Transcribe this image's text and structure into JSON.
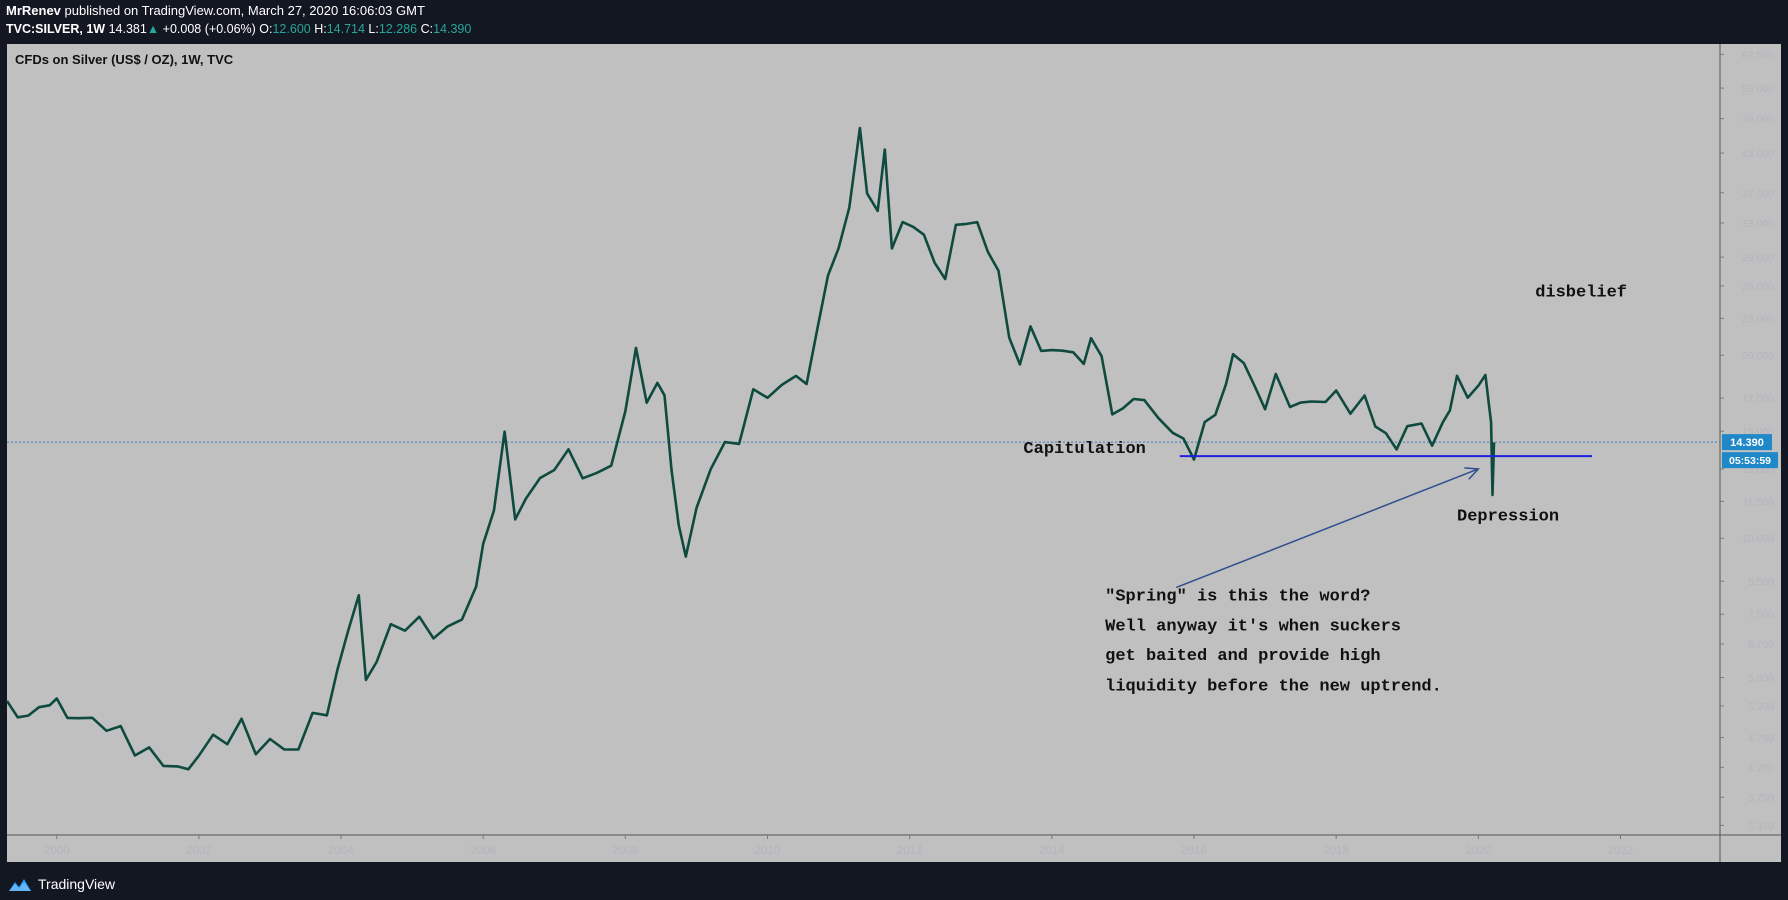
{
  "header": {
    "author": "MrRenev",
    "published": "published on TradingView.com, March 27, 2020 16:06:03 GMT",
    "symbol": "TVC:SILVER, 1W",
    "last": "14.381",
    "change": "+0.008 (+0.06%)",
    "open_label": "O:",
    "open": "12.600",
    "high_label": "H:",
    "high": "14.714",
    "low_label": "L:",
    "low": "12.286",
    "close_label": "C:",
    "close": "14.390"
  },
  "chart_title": "CFDs on Silver (US$ / OZ), 1W, TVC",
  "footer": {
    "brand": "TradingView"
  },
  "colors": {
    "line": "#0f4a3e",
    "support": "#1f1fe0",
    "arrow": "#2e4f8e",
    "price_tag": "#1e88c8"
  },
  "chart_data": {
    "type": "line",
    "title": "CFDs on Silver (US$ / OZ), 1W, TVC",
    "xlabel": "",
    "ylabel": "",
    "x_ticks": [
      "2000",
      "2002",
      "2004",
      "2006",
      "2008",
      "2010",
      "2012",
      "2014",
      "2016",
      "2018",
      "2020",
      "2022"
    ],
    "y_ticks": [
      "62.500",
      "55.000",
      "49.000",
      "43.000",
      "37.000",
      "33.000",
      "29.000",
      "26.000",
      "23.000",
      "20.000",
      "17.000",
      "15.000",
      "13.000",
      "11.500",
      "10.000",
      "8.500",
      "7.500",
      "6.700",
      "5.900",
      "5.300",
      "4.700",
      "4.200",
      "3.750",
      "3.370"
    ],
    "scale": "log",
    "xlim": [
      1999.3,
      2023.4
    ],
    "ylim": [
      3.25,
      65
    ],
    "last_price_label": "14.390",
    "countdown_label": "05:53:59",
    "last_price": 14.39,
    "series": [
      {
        "points": [
          [
            1999.3,
            5.4
          ],
          [
            1999.45,
            5.0
          ],
          [
            1999.6,
            5.25
          ],
          [
            1999.75,
            5.1
          ],
          [
            1999.9,
            5.5
          ],
          [
            2000.0,
            5.3
          ],
          [
            2000.15,
            5.15
          ],
          [
            2000.3,
            5.05
          ],
          [
            2000.5,
            5.0
          ],
          [
            2000.7,
            4.95
          ],
          [
            2000.9,
            4.75
          ],
          [
            2001.1,
            4.55
          ],
          [
            2001.3,
            4.4
          ],
          [
            2001.5,
            4.3
          ],
          [
            2001.7,
            4.2
          ],
          [
            2001.85,
            4.12
          ],
          [
            2002.0,
            4.5
          ],
          [
            2002.2,
            4.6
          ],
          [
            2002.4,
            4.75
          ],
          [
            2002.6,
            4.9
          ],
          [
            2002.8,
            4.5
          ],
          [
            2003.0,
            4.65
          ],
          [
            2003.2,
            4.45
          ],
          [
            2003.4,
            4.6
          ],
          [
            2003.6,
            5.0
          ],
          [
            2003.8,
            5.3
          ],
          [
            2003.95,
            5.9
          ],
          [
            2004.1,
            7.2
          ],
          [
            2004.25,
            8.0
          ],
          [
            2004.35,
            5.8
          ],
          [
            2004.5,
            6.4
          ],
          [
            2004.7,
            7.0
          ],
          [
            2004.9,
            7.3
          ],
          [
            2005.1,
            7.2
          ],
          [
            2005.3,
            7.0
          ],
          [
            2005.5,
            7.1
          ],
          [
            2005.7,
            7.3
          ],
          [
            2005.9,
            8.5
          ],
          [
            2006.0,
            9.5
          ],
          [
            2006.15,
            11.5
          ],
          [
            2006.3,
            14.5
          ],
          [
            2006.45,
            11.0
          ],
          [
            2006.6,
            11.5
          ],
          [
            2006.8,
            12.5
          ],
          [
            2007.0,
            13.2
          ],
          [
            2007.2,
            13.6
          ],
          [
            2007.4,
            13.0
          ],
          [
            2007.6,
            12.4
          ],
          [
            2007.8,
            13.5
          ],
          [
            2008.0,
            16.0
          ],
          [
            2008.15,
            20.5
          ],
          [
            2008.3,
            17.0
          ],
          [
            2008.45,
            17.5
          ],
          [
            2008.55,
            17.8
          ],
          [
            2008.65,
            12.5
          ],
          [
            2008.75,
            10.8
          ],
          [
            2008.85,
            9.2
          ],
          [
            2009.0,
            11.2
          ],
          [
            2009.2,
            13.2
          ],
          [
            2009.4,
            14.0
          ],
          [
            2009.6,
            14.8
          ],
          [
            2009.8,
            17.0
          ],
          [
            2010.0,
            17.5
          ],
          [
            2010.2,
            17.6
          ],
          [
            2010.4,
            18.5
          ],
          [
            2010.55,
            18.2
          ],
          [
            2010.7,
            21.5
          ],
          [
            2010.85,
            28.0
          ],
          [
            2011.0,
            29.0
          ],
          [
            2011.15,
            36.0
          ],
          [
            2011.3,
            46.5
          ],
          [
            2011.4,
            37.0
          ],
          [
            2011.55,
            35.0
          ],
          [
            2011.65,
            42.5
          ],
          [
            2011.75,
            31.0
          ],
          [
            2011.9,
            32.0
          ],
          [
            2012.05,
            33.5
          ],
          [
            2012.2,
            31.0
          ],
          [
            2012.35,
            28.5
          ],
          [
            2012.5,
            27.0
          ],
          [
            2012.65,
            32.0
          ],
          [
            2012.8,
            34.0
          ],
          [
            2012.95,
            32.0
          ],
          [
            2013.1,
            30.5
          ],
          [
            2013.25,
            27.0
          ],
          [
            2013.4,
            21.5
          ],
          [
            2013.55,
            19.5
          ],
          [
            2013.7,
            21.8
          ],
          [
            2013.85,
            21.0
          ],
          [
            2014.0,
            19.7
          ],
          [
            2014.15,
            21.0
          ],
          [
            2014.3,
            19.8
          ],
          [
            2014.45,
            19.5
          ],
          [
            2014.55,
            21.5
          ],
          [
            2014.7,
            19.5
          ],
          [
            2014.85,
            16.5
          ],
          [
            2015.0,
            15.8
          ],
          [
            2015.15,
            17.5
          ],
          [
            2015.3,
            16.5
          ],
          [
            2015.5,
            15.9
          ],
          [
            2015.7,
            15.0
          ],
          [
            2015.85,
            14.3
          ],
          [
            2016.0,
            13.9
          ],
          [
            2016.15,
            15.0
          ],
          [
            2016.3,
            16.5
          ],
          [
            2016.45,
            17.5
          ],
          [
            2016.55,
            20.3
          ],
          [
            2016.7,
            19.5
          ],
          [
            2016.85,
            17.5
          ],
          [
            2017.0,
            16.8
          ],
          [
            2017.15,
            18.0
          ],
          [
            2017.35,
            17.0
          ],
          [
            2017.5,
            16.3
          ],
          [
            2017.65,
            17.0
          ],
          [
            2017.85,
            16.8
          ],
          [
            2018.0,
            17.2
          ],
          [
            2018.2,
            16.5
          ],
          [
            2018.4,
            16.6
          ],
          [
            2018.55,
            15.8
          ],
          [
            2018.7,
            14.5
          ],
          [
            2018.85,
            14.2
          ],
          [
            2019.0,
            15.3
          ],
          [
            2019.2,
            15.2
          ],
          [
            2019.35,
            14.6
          ],
          [
            2019.5,
            15.0
          ],
          [
            2019.6,
            16.8
          ],
          [
            2019.7,
            18.0
          ],
          [
            2019.85,
            17.3
          ],
          [
            2020.0,
            17.8
          ],
          [
            2020.1,
            18.3
          ],
          [
            2020.15,
            17.0
          ],
          [
            2020.18,
            15.0
          ],
          [
            2020.2,
            12.2
          ],
          [
            2020.22,
            14.38
          ]
        ]
      }
    ],
    "support_line": {
      "price": 13.65,
      "x_start": 2015.8,
      "x_end": 2021.6
    },
    "arrow": {
      "from": [
        2015.75,
        8.3
      ],
      "to": [
        2020.0,
        13.0
      ]
    },
    "annotations": [
      {
        "text": "disbelief",
        "x": 2020.8,
        "y": 25.0
      },
      {
        "text": "Capitulation",
        "x": 2013.6,
        "y": 13.8
      },
      {
        "text": "Depression",
        "x": 2019.7,
        "y": 10.7
      },
      {
        "text": "\"Spring\" is this the word?",
        "x": 2014.75,
        "y": 7.9
      },
      {
        "text": "Well anyway it's when suckers",
        "x": 2014.75,
        "y": 7.05
      },
      {
        "text": "get baited and provide high",
        "x": 2014.75,
        "y": 6.3
      },
      {
        "text": "liquidity before the new uptrend.",
        "x": 2014.75,
        "y": 5.62
      }
    ]
  }
}
